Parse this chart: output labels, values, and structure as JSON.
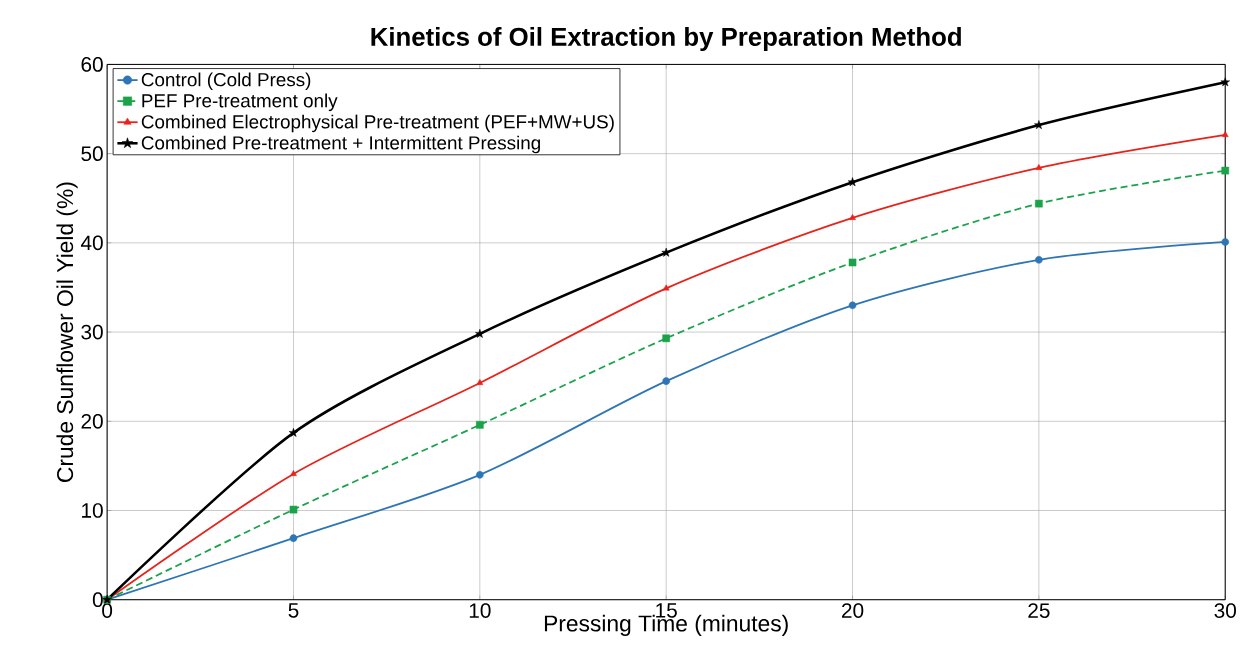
{
  "chart_data": {
    "type": "line",
    "title": "Kinetics of Oil Extraction by Preparation Method",
    "xlabel": "Pressing Time (minutes)",
    "ylabel": "Crude Sunflower Oil Yield (%)",
    "x": [
      0,
      5,
      10,
      15,
      20,
      25,
      30
    ],
    "series": [
      {
        "name": "Control (Cold Press)",
        "color": "#2e75b6",
        "marker": "circle",
        "line_style": "solid",
        "values": [
          0,
          6.9,
          14,
          24.5,
          33,
          38.1,
          40.1
        ]
      },
      {
        "name": "PEF Pre-treatment only",
        "color": "#1aa34a",
        "marker": "square",
        "line_style": "dashed",
        "values": [
          0,
          10.1,
          19.6,
          29.3,
          37.8,
          44.4,
          48.1
        ]
      },
      {
        "name": "Combined Electrophysical Pre-treatment (PEF+MW+US)",
        "color": "#e8231b",
        "marker": "triangle",
        "line_style": "solid",
        "values": [
          0,
          14.1,
          24.3,
          34.9,
          42.8,
          48.4,
          52.1
        ]
      },
      {
        "name": "Combined Pre-treatment + Intermittent Pressing",
        "color": "#000000",
        "marker": "star",
        "line_style": "solid",
        "values": [
          0,
          18.7,
          29.8,
          38.9,
          46.8,
          53.2,
          58
        ]
      }
    ],
    "xlim": [
      0,
      30
    ],
    "xticks": [
      0,
      5,
      10,
      15,
      20,
      25,
      30
    ],
    "ylim": [
      0,
      60
    ],
    "yticks": [
      0,
      10,
      20,
      30,
      40,
      50,
      60
    ],
    "grid": true,
    "legend": "top left"
  }
}
